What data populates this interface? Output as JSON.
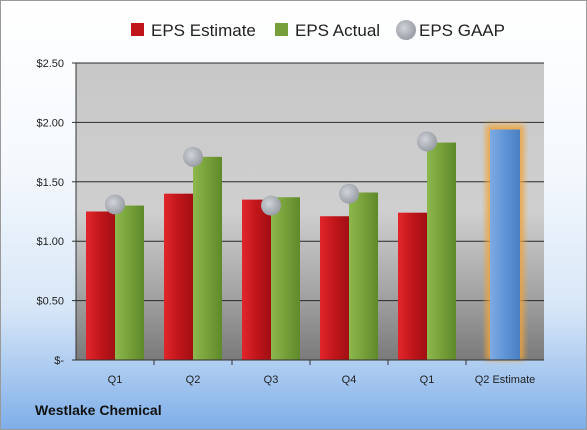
{
  "chart_data": {
    "type": "bar",
    "categories": [
      "Q1",
      "Q2",
      "Q3",
      "Q4",
      "Q1",
      "Q2 Estimate"
    ],
    "series": [
      {
        "name": "EPS Estimate",
        "color": "#c0161b",
        "values": [
          1.25,
          1.4,
          1.35,
          1.21,
          1.24,
          null
        ]
      },
      {
        "name": "EPS Actual",
        "color": "#77a03a",
        "values": [
          1.3,
          1.71,
          1.37,
          1.41,
          1.83,
          null
        ]
      },
      {
        "name": "EPS GAAP",
        "color": "#b8bcc4",
        "marker": "circle",
        "values": [
          1.31,
          1.71,
          1.3,
          1.4,
          1.84,
          null
        ]
      }
    ],
    "estimate_bar": {
      "category": "Q2 Estimate",
      "value": 1.94,
      "color": "#5f95d6",
      "glow": "#f0a43a"
    },
    "y_ticks": [
      "$-",
      "$0.50",
      "$1.00",
      "$1.50",
      "$2.00",
      "$2.50"
    ],
    "ylim": [
      0,
      2.5
    ],
    "grid": true,
    "legend_position": "top",
    "company": "Westlake Chemical"
  }
}
